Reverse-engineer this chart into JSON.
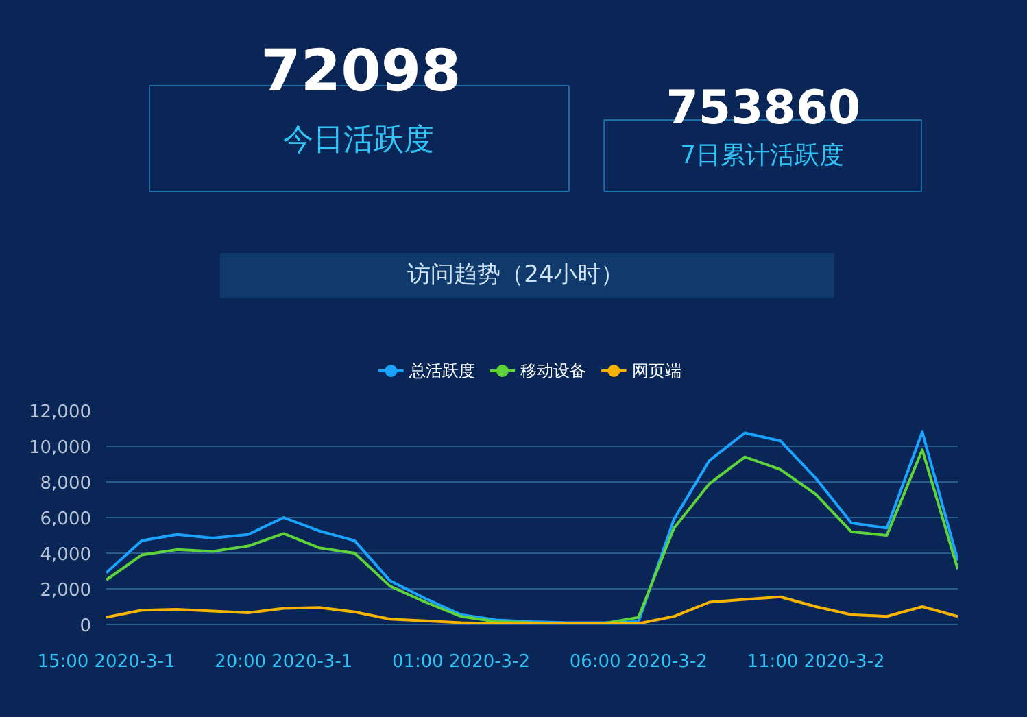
{
  "chart_data": {
    "type": "line",
    "title": "访问趋势（24小时）",
    "annotations": [
      "72098",
      "今日活跃度",
      "753860",
      "7日累计活跃度"
    ],
    "categories": [
      "15:00 2020-3-1",
      null,
      null,
      null,
      null,
      "20:00 2020-3-1",
      null,
      null,
      null,
      null,
      "01:00 2020-3-2",
      null,
      null,
      null,
      null,
      "06:00 2020-3-2",
      null,
      null,
      null,
      null,
      "11:00 2020-3-2",
      null,
      null,
      null,
      null
    ],
    "series": [
      {
        "name": "总活跃度",
        "color": "#1aa3ff",
        "values": [
          2900,
          4700,
          5050,
          4850,
          5050,
          6000,
          5250,
          4700,
          2450,
          1450,
          550,
          250,
          150,
          100,
          100,
          150,
          5900,
          9200,
          10750,
          10300,
          8200,
          5700,
          5400,
          10800,
          3600
        ]
      },
      {
        "name": "移动设备",
        "color": "#5fd33a",
        "values": [
          2500,
          3900,
          4200,
          4100,
          4400,
          5100,
          4300,
          4000,
          2150,
          1250,
          450,
          150,
          100,
          50,
          50,
          400,
          5400,
          7900,
          9400,
          8700,
          7300,
          5200,
          5000,
          9800,
          3100
        ]
      },
      {
        "name": "网页端",
        "color": "#f5b400",
        "values": [
          400,
          800,
          850,
          750,
          650,
          900,
          950,
          700,
          300,
          200,
          100,
          50,
          50,
          50,
          50,
          50,
          450,
          1250,
          1400,
          1550,
          1000,
          550,
          450,
          1000,
          450
        ]
      }
    ],
    "ylim": [
      0,
      12000
    ],
    "yticks": [
      0,
      {
        "value": 2000,
        "label": "2,000"
      },
      {
        "value": 4000,
        "label": "4,000"
      },
      {
        "value": 6000,
        "label": "6,000"
      },
      {
        "value": 8000,
        "label": "8,000"
      },
      {
        "value": 10000,
        "label": "10,000"
      },
      {
        "value": 12000,
        "label": "12,000"
      }
    ],
    "grid": "y",
    "legend": "top"
  }
}
